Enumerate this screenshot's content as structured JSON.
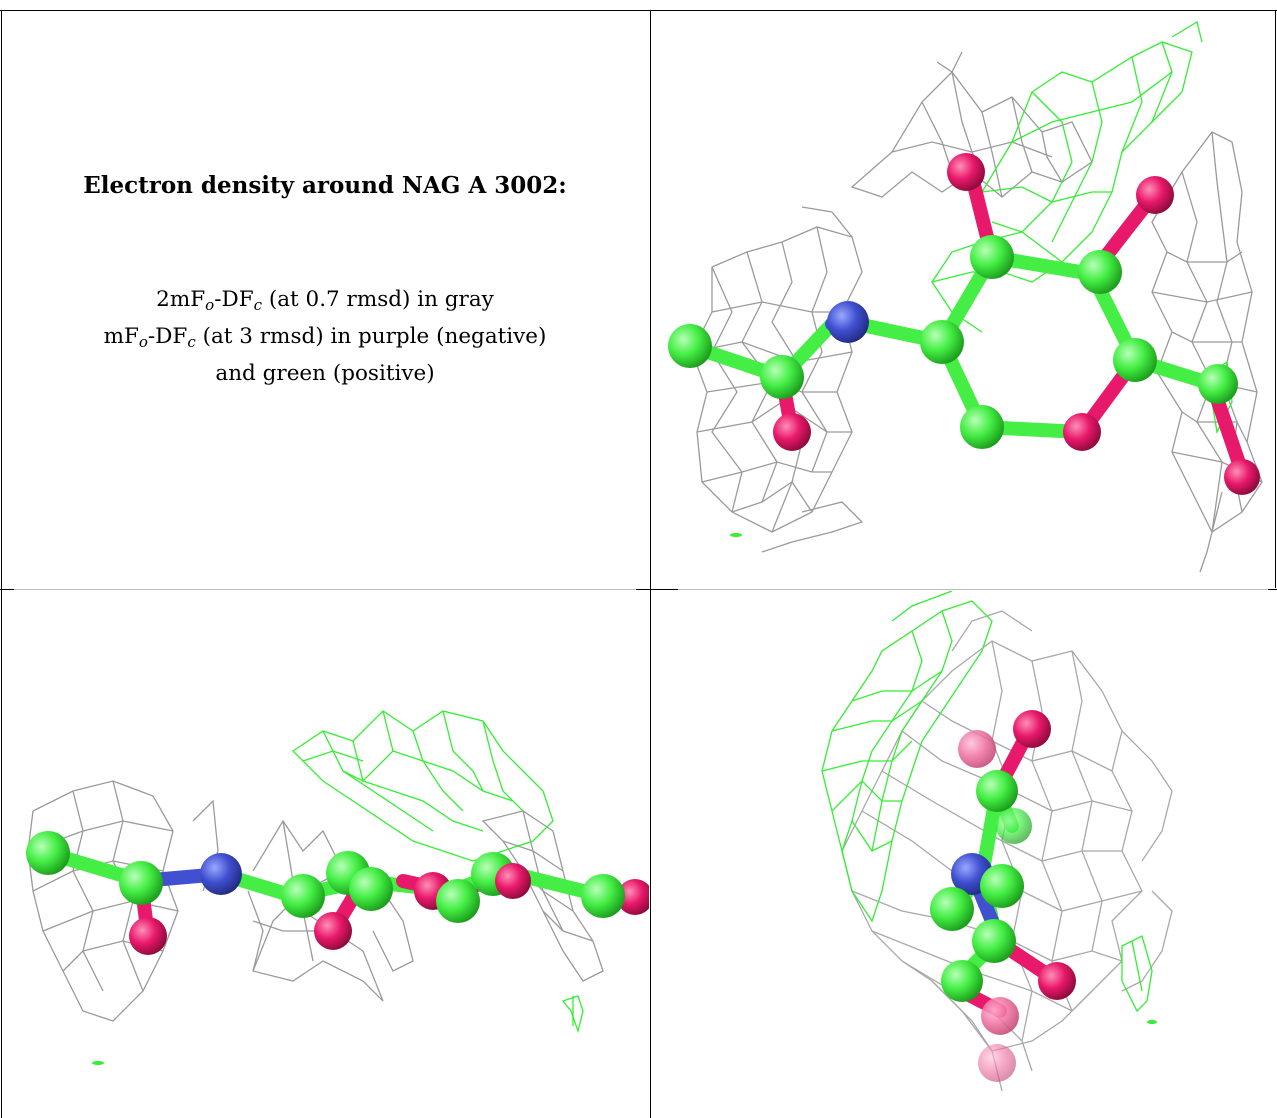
{
  "caption": {
    "title": "Electron density around NAG A 3002:",
    "line1_a": "2mF",
    "line1_sub1": "o",
    "line1_b": "-DF",
    "line1_sub2": "c",
    "line1_c": " (at 0.7 rmsd) in gray",
    "line2_a": "mF",
    "line2_sub1": "o",
    "line2_b": "-DF",
    "line2_sub2": "c",
    "line2_c": " (at 3 rmsd) in purple (negative)",
    "line3": "and green (positive)"
  },
  "colors": {
    "carbon": "#44ee44",
    "oxygen": "#e8186a",
    "nitrogen": "#4050d0",
    "mesh_gray": "#9a9a9a",
    "mesh_green": "#33ee33"
  }
}
